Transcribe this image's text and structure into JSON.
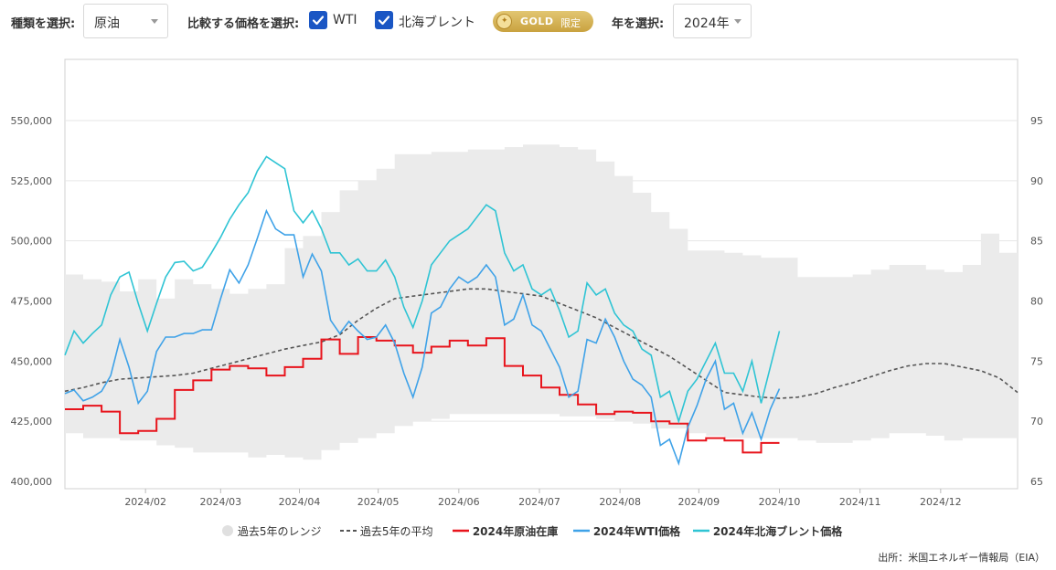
{
  "controls": {
    "type_label": "種類を選択:",
    "type_value": "原油",
    "compare_label": "比較する価格を選択:",
    "wti_label": "WTI",
    "brent_label": "北海ブレント",
    "gold_text": "GOLD",
    "gold_badge": "限定",
    "year_label": "年を選択:",
    "year_value": "2024年"
  },
  "legend": {
    "range": "過去5年のレンジ",
    "avg": "過去5年の平均",
    "inventory": "2024年原油在庫",
    "wti": "2024年WTI価格",
    "brent": "2024年北海ブレント価格"
  },
  "source": "出所：米国エネルギー情報局（EIA）",
  "colors": {
    "range": "#ebebeb",
    "avg": "#555555",
    "inventory": "#e8141c",
    "wti": "#3fa2e8",
    "brent": "#2fc4d4",
    "checkbox": "#1a56c4"
  },
  "chart_data": {
    "type": "line",
    "x_unit": "week of 2024",
    "x_ticks": [
      "2024/02",
      "2024/03",
      "2024/04",
      "2024/05",
      "2024/06",
      "2024/07",
      "2024/08",
      "2024/09",
      "2024/10",
      "2024/11",
      "2024/12"
    ],
    "x_tick_weeks": [
      4.4,
      8.5,
      12.8,
      17.1,
      21.5,
      25.9,
      30.3,
      34.6,
      39.0,
      43.4,
      47.8
    ],
    "left_axis": {
      "ticks": [
        "400,000",
        "425,000",
        "450,000",
        "475,000",
        "500,000",
        "525,000",
        "550,000"
      ],
      "min": 400000,
      "max": 550000
    },
    "right_axis": {
      "ticks": [
        "65",
        "70",
        "75",
        "80",
        "85",
        "90",
        "95"
      ],
      "min": 65,
      "max": 95
    },
    "grid": true,
    "legend_position": "bottom",
    "series": [
      {
        "name": "過去5年のレンジ",
        "axis": "left",
        "kind": "band",
        "weeks": [
          0,
          1,
          2,
          3,
          4,
          5,
          6,
          7,
          8,
          9,
          10,
          11,
          12,
          13,
          14,
          15,
          16,
          17,
          18,
          19,
          20,
          21,
          22,
          23,
          24,
          25,
          26,
          27,
          28,
          29,
          30,
          31,
          32,
          33,
          34,
          35,
          36,
          37,
          38,
          39,
          40,
          41,
          42,
          43,
          44,
          45,
          46,
          47,
          48,
          49,
          50,
          51,
          52
        ],
        "high": [
          486,
          484,
          483,
          479,
          484,
          476,
          484,
          482,
          480,
          478,
          480,
          482,
          497,
          502,
          512,
          521,
          525,
          530,
          536,
          536,
          537,
          537,
          538,
          538,
          539,
          540,
          540,
          539,
          538,
          533,
          527,
          520,
          512,
          505,
          496,
          496,
          495,
          494,
          493,
          493,
          485,
          485,
          485,
          486,
          488,
          490,
          490,
          488,
          487,
          490,
          503,
          495,
          492
        ],
        "low": [
          420,
          418,
          418,
          417,
          417,
          415,
          414,
          412,
          412,
          412,
          410,
          411,
          410,
          409,
          413,
          416,
          418,
          420,
          423,
          425,
          426,
          428,
          428,
          428,
          428,
          428,
          428,
          427,
          427,
          426,
          425,
          424,
          422,
          422,
          420,
          419,
          418,
          418,
          418,
          418,
          417,
          416,
          416,
          417,
          418,
          420,
          420,
          419,
          417,
          418,
          418,
          418,
          416
        ]
      },
      {
        "name": "過去5年の平均",
        "axis": "left",
        "kind": "line",
        "weeks": [
          0,
          1,
          2,
          3,
          4,
          5,
          6,
          7,
          8,
          9,
          10,
          11,
          12,
          13,
          14,
          15,
          16,
          17,
          18,
          19,
          20,
          21,
          22,
          23,
          24,
          25,
          26,
          27,
          28,
          29,
          30,
          31,
          32,
          33,
          34,
          35,
          36,
          37,
          38,
          39,
          40,
          41,
          42,
          43,
          44,
          45,
          46,
          47,
          48,
          49,
          50,
          51,
          52
        ],
        "values": [
          437.5,
          439,
          441,
          442.5,
          443,
          443.5,
          444,
          445,
          447,
          449,
          451,
          453,
          455,
          456.5,
          458,
          461,
          467,
          472,
          476,
          477,
          478,
          479,
          480,
          480,
          479,
          478,
          477,
          474,
          471,
          468,
          464,
          460,
          456,
          452,
          447,
          442,
          437,
          436,
          435,
          434.5,
          435,
          436.5,
          439,
          441,
          443.5,
          446,
          448,
          449,
          449,
          447.5,
          446,
          443,
          437
        ]
      },
      {
        "name": "2024年原油在庫",
        "axis": "left",
        "kind": "line",
        "weeks": [
          0,
          1,
          2,
          3,
          4,
          5,
          6,
          7,
          8,
          9,
          10,
          11,
          12,
          13,
          14,
          15,
          16,
          17,
          18,
          19,
          20,
          21,
          22,
          23,
          24,
          25,
          26,
          27,
          28,
          29,
          30,
          31,
          32,
          33,
          34,
          35,
          36,
          37,
          38
        ],
        "values": [
          430,
          431.5,
          429,
          420,
          421,
          426,
          438,
          442,
          446.5,
          448,
          447,
          444,
          447.5,
          451,
          459,
          453,
          460,
          458.5,
          456.5,
          453.5,
          456,
          458.5,
          456.5,
          459.5,
          448,
          444,
          439,
          436,
          432,
          428,
          429,
          428.5,
          425,
          424,
          417,
          418,
          417,
          412,
          416
        ]
      },
      {
        "name": "2024年WTI価格",
        "axis": "right",
        "kind": "line",
        "weeks": [
          0,
          0.5,
          1,
          1.5,
          2,
          2.5,
          3,
          3.5,
          4,
          4.5,
          5,
          5.5,
          6,
          6.5,
          7,
          7.5,
          8,
          8.5,
          9,
          9.5,
          10,
          10.5,
          11,
          11.5,
          12,
          12.5,
          13,
          13.5,
          14,
          14.5,
          15,
          15.5,
          16,
          16.5,
          17,
          17.5,
          18,
          18.5,
          19,
          19.5,
          20,
          20.5,
          21,
          21.5,
          22,
          22.5,
          23,
          23.5,
          24,
          24.5,
          25,
          25.5,
          26,
          26.5,
          27,
          27.5,
          28,
          28.5,
          29,
          29.5,
          30,
          30.5,
          31,
          31.5,
          32,
          32.5,
          33,
          33.5,
          34,
          34.5,
          35,
          35.5,
          36,
          36.5,
          37,
          37.5,
          38,
          38.5,
          39
        ],
        "values": [
          72.3,
          72.6,
          71.7,
          72.0,
          72.5,
          73.8,
          76.8,
          74.5,
          71.5,
          72.5,
          75.8,
          77.0,
          77.0,
          77.3,
          77.3,
          77.6,
          77.6,
          80.2,
          82.6,
          81.5,
          83.0,
          85.2,
          87.5,
          86.0,
          85.5,
          85.5,
          82.0,
          83.9,
          82.5,
          78.4,
          77.3,
          78.3,
          77.5,
          76.8,
          77.0,
          78.0,
          76.5,
          74.0,
          72.0,
          74.5,
          79.0,
          79.5,
          81.0,
          82.0,
          81.5,
          82.0,
          83.0,
          82.0,
          78.0,
          78.5,
          80.5,
          78.0,
          77.5,
          76.0,
          74.5,
          72.0,
          72.5,
          76.8,
          76.5,
          78.5,
          77.0,
          75.0,
          73.5,
          73.0,
          72.0,
          68.0,
          68.5,
          66.5,
          69.5,
          71.3,
          73.5,
          75.0,
          71.0,
          71.5,
          69.0,
          70.7,
          68.5,
          71.0,
          72.7
        ]
      },
      {
        "name": "2024年北海ブレント価格",
        "axis": "right",
        "kind": "line",
        "weeks": [
          0,
          0.5,
          1,
          1.5,
          2,
          2.5,
          3,
          3.5,
          4,
          4.5,
          5,
          5.5,
          6,
          6.5,
          7,
          7.5,
          8,
          8.5,
          9,
          9.5,
          10,
          10.5,
          11,
          11.5,
          12,
          12.5,
          13,
          13.5,
          14,
          14.5,
          15,
          15.5,
          16,
          16.5,
          17,
          17.5,
          18,
          18.5,
          19,
          19.5,
          20,
          20.5,
          21,
          21.5,
          22,
          22.5,
          23,
          23.5,
          24,
          24.5,
          25,
          25.5,
          26,
          26.5,
          27,
          27.5,
          28,
          28.5,
          29,
          29.5,
          30,
          30.5,
          31,
          31.5,
          32,
          32.5,
          33,
          33.5,
          34,
          34.5,
          35,
          35.5,
          36,
          36.5,
          37,
          37.5,
          38,
          38.5,
          39
        ],
        "values": [
          75.5,
          77.5,
          76.5,
          77.3,
          78.0,
          80.5,
          82.0,
          82.4,
          79.8,
          77.5,
          79.8,
          82.0,
          83.2,
          83.3,
          82.5,
          82.8,
          84.0,
          85.3,
          86.8,
          88.0,
          89.0,
          90.8,
          92.0,
          91.5,
          91.0,
          87.5,
          86.5,
          87.5,
          86.0,
          84.0,
          84.0,
          83.0,
          83.5,
          82.5,
          82.5,
          83.4,
          82.0,
          79.5,
          77.8,
          80.0,
          83.0,
          84.0,
          85.0,
          85.5,
          86.0,
          87.0,
          88.0,
          87.5,
          84.0,
          82.5,
          83.0,
          81.0,
          80.5,
          81.0,
          79.2,
          77.0,
          77.5,
          81.5,
          80.5,
          81.0,
          79.0,
          78.0,
          77.5,
          76.0,
          75.5,
          72.0,
          72.5,
          70.0,
          72.5,
          73.5,
          75.0,
          76.5,
          74.0,
          74.0,
          72.5,
          75.0,
          71.5,
          74.5,
          77.5
        ]
      }
    ]
  }
}
